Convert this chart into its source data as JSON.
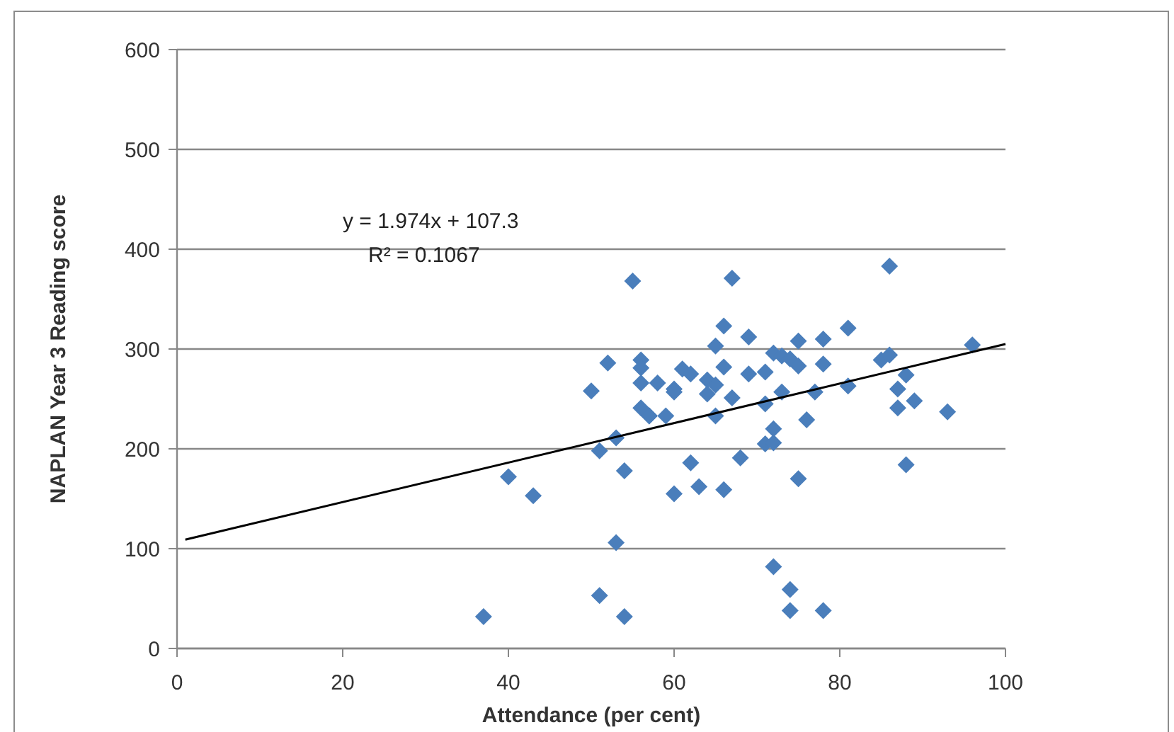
{
  "chart_data": {
    "type": "scatter",
    "xlabel": "Attendance (per cent)",
    "ylabel": "NAPLAN Year 3 Reading score",
    "annotations": [
      "y = 1.974x + 107.3",
      "R² = 0.1067"
    ],
    "xlim": [
      0,
      100
    ],
    "xticks": [
      0,
      20,
      40,
      60,
      80,
      100
    ],
    "ylim": [
      0,
      600
    ],
    "yticks": [
      0,
      100,
      200,
      300,
      400,
      500,
      600
    ],
    "grid": "y",
    "series": [
      {
        "marker": "diamond",
        "color": "#4a7ebb",
        "x": [
          37,
          40,
          43,
          50,
          51,
          52,
          53,
          54,
          51,
          54,
          53,
          55,
          56,
          56,
          56,
          56,
          58,
          57,
          57,
          59,
          60,
          60,
          61,
          62,
          62,
          63,
          60,
          64,
          65,
          64,
          66,
          65,
          66,
          67,
          67,
          66,
          65,
          69,
          69,
          71,
          71,
          68,
          71,
          72,
          72,
          72,
          72,
          73,
          73,
          74,
          75,
          76,
          77,
          78,
          78,
          75,
          75,
          74,
          74,
          78,
          81,
          81,
          85,
          86,
          86,
          87,
          87,
          88,
          88,
          89,
          93,
          96
        ],
        "values": [
          32,
          172,
          153,
          258,
          198,
          286,
          211,
          178,
          53,
          32,
          106,
          368,
          289,
          281,
          266,
          241,
          266,
          233,
          233,
          233,
          260,
          155,
          280,
          275,
          186,
          162,
          257,
          269,
          264,
          255,
          282,
          303,
          323,
          371,
          251,
          159,
          233,
          312,
          275,
          277,
          245,
          191,
          205,
          220,
          206,
          82,
          296,
          257,
          293,
          290,
          283,
          229,
          257,
          310,
          285,
          308,
          170,
          59,
          38,
          38,
          321,
          263,
          289,
          294,
          383,
          260,
          241,
          274,
          184,
          248,
          237,
          304
        ]
      },
      {
        "type": "line",
        "marker": "none",
        "color": "#000000",
        "x": [
          1,
          100
        ],
        "values": [
          109,
          305
        ]
      }
    ]
  }
}
